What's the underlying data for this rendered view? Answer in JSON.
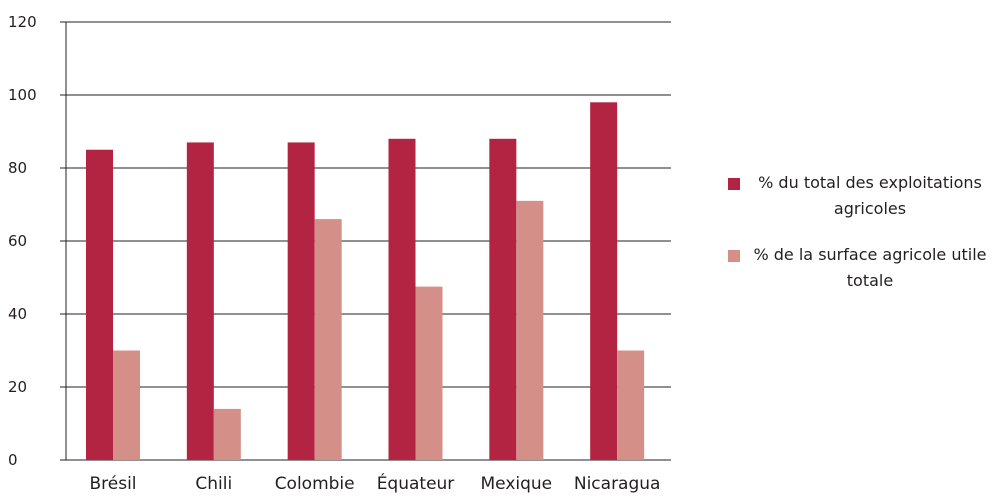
{
  "chart_data": {
    "type": "bar",
    "categories": [
      "Brésil",
      "Chili",
      "Colombie",
      "Équateur",
      "Mexique",
      "Nicaragua"
    ],
    "series": [
      {
        "name": "% du total des exploitations agricoles",
        "color": "#b32442",
        "values": [
          85,
          87,
          87,
          88,
          88,
          98
        ]
      },
      {
        "name": "% de la surface agricole utile totale",
        "color": "#d48f89",
        "values": [
          30,
          14,
          66,
          47.5,
          71,
          30
        ]
      }
    ],
    "ylim": [
      0,
      120
    ],
    "yticks": [
      0,
      20,
      40,
      60,
      80,
      100,
      120
    ],
    "grid": true,
    "legend_position": "right"
  }
}
